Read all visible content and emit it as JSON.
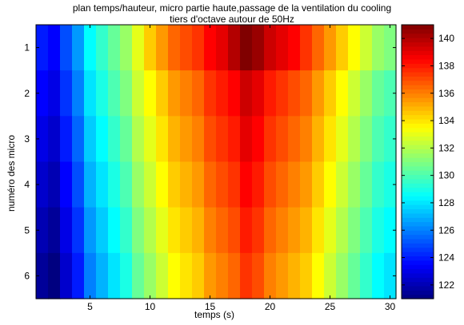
{
  "chart_data": {
    "type": "heatmap",
    "title": "plan temps/hauteur, micro partie haute,passage de la ventilation du cooling",
    "subtitle": "tiers d'octave autour de 50Hz",
    "xlabel": "temps (s)",
    "ylabel": "numéro des micro",
    "x_ticks": [
      5,
      10,
      15,
      20,
      25,
      30
    ],
    "y_ticks": [
      1,
      2,
      3,
      4,
      5,
      6
    ],
    "xlim": [
      0.5,
      30.5
    ],
    "ylim": [
      0.5,
      6.5
    ],
    "y_reversed": true,
    "colormap": "jet",
    "clim": [
      121,
      141
    ],
    "colorbar_ticks": [
      122,
      124,
      126,
      128,
      130,
      132,
      134,
      136,
      138,
      140
    ],
    "x": [
      1,
      2,
      3,
      4,
      5,
      6,
      7,
      8,
      9,
      10,
      11,
      12,
      13,
      14,
      15,
      16,
      17,
      18,
      19,
      20,
      21,
      22,
      23,
      24,
      25,
      26,
      27,
      28,
      29,
      30
    ],
    "y": [
      1,
      2,
      3,
      4,
      5,
      6
    ],
    "z": [
      [
        124,
        123.5,
        125,
        126.5,
        128.5,
        129.5,
        130.5,
        131.5,
        133,
        134.5,
        135.5,
        136.5,
        137,
        137.5,
        138.5,
        139,
        140,
        141,
        140.5,
        139.5,
        139,
        138.5,
        137.5,
        136.5,
        135.5,
        134.5,
        133.5,
        132.5,
        131.5,
        131
      ],
      [
        123.5,
        123,
        124.5,
        126,
        128,
        129,
        130,
        131,
        132.5,
        133.5,
        134.5,
        135.5,
        136,
        136.5,
        137.5,
        138,
        138.5,
        139.5,
        139,
        138,
        137.5,
        137,
        136.5,
        135.5,
        134.5,
        133.5,
        132.5,
        131.5,
        130.5,
        130
      ],
      [
        123,
        122.5,
        124,
        125.5,
        127.5,
        128.5,
        129.5,
        130.5,
        132,
        133,
        134,
        135,
        135.5,
        136,
        137,
        137.5,
        138,
        139,
        138.5,
        137.5,
        137,
        136.5,
        136,
        135,
        134,
        133,
        132,
        131,
        130,
        129.5
      ],
      [
        122.5,
        122,
        123.5,
        125,
        127,
        128,
        129,
        130,
        131.5,
        132.5,
        133.5,
        134.5,
        135,
        135.5,
        136.5,
        137,
        137.5,
        138.5,
        138,
        137,
        136.5,
        136,
        135.5,
        134.5,
        133.5,
        132.5,
        131.5,
        130.5,
        129.5,
        129
      ],
      [
        122,
        121.5,
        123,
        124.5,
        126.5,
        127.5,
        128.5,
        129.5,
        131,
        132,
        133,
        134,
        134.5,
        135,
        136,
        136.5,
        137,
        138,
        137.5,
        136.5,
        136,
        135.5,
        135,
        134,
        133,
        132,
        131,
        130,
        129,
        128.5
      ],
      [
        121.5,
        121,
        122.5,
        124,
        126,
        127,
        128,
        129,
        130.5,
        131.5,
        132.5,
        133.5,
        134,
        134.5,
        135.5,
        136,
        136.5,
        137.5,
        137,
        136,
        135.5,
        135,
        134.5,
        133.5,
        132.5,
        131.5,
        130.5,
        129.5,
        128.5,
        128
      ]
    ]
  }
}
